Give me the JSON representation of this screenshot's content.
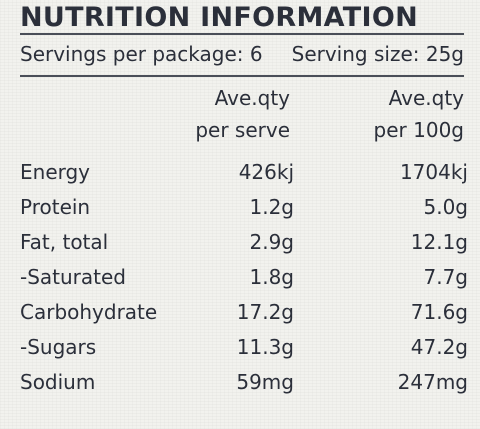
{
  "title": "NUTRITION INFORMATION",
  "servings_per_package": "Servings per package: 6",
  "serving_size": "Serving size: 25g",
  "columns": {
    "per_serve": [
      "Ave.qty",
      "per serve"
    ],
    "per_100g": [
      "Ave.qty",
      "per 100g"
    ]
  },
  "rows": [
    {
      "label": "Energy",
      "per_serve": "426kj",
      "per_100g": "1704kj"
    },
    {
      "label": "Protein",
      "per_serve": "1.2g",
      "per_100g": "5.0g"
    },
    {
      "label": "Fat, total",
      "per_serve": "2.9g",
      "per_100g": "12.1g"
    },
    {
      "label": "-Saturated",
      "per_serve": "1.8g",
      "per_100g": "7.7g"
    },
    {
      "label": "Carbohydrate",
      "per_serve": "17.2g",
      "per_100g": "71.6g"
    },
    {
      "label": "-Sugars",
      "per_serve": "11.3g",
      "per_100g": "47.2g"
    },
    {
      "label": "Sodium",
      "per_serve": "59mg",
      "per_100g": "247mg"
    }
  ]
}
